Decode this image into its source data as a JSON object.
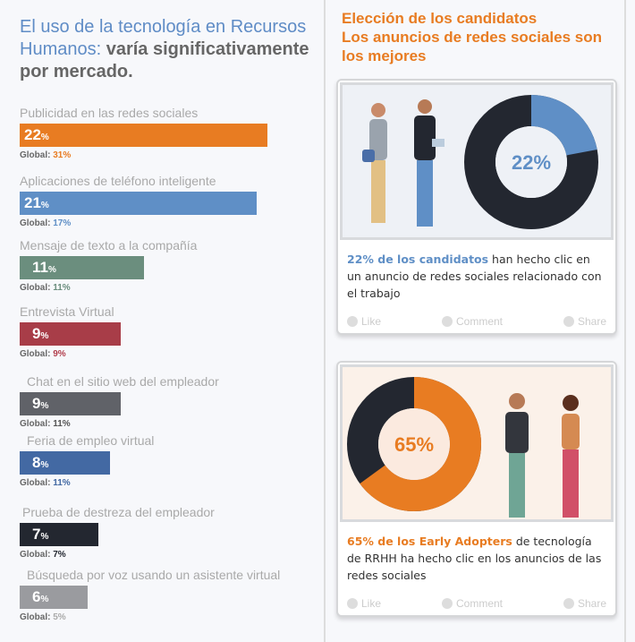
{
  "left": {
    "title_highlight": "El uso de la tecnología en Recursos Humanos:",
    "title_rest": " varía significativamente por mercado.",
    "global_label": "Global:",
    "items": [
      {
        "label": "Publicidad en las redes sociales",
        "value": 22,
        "value_text": "22",
        "global": "31%",
        "color": "#e87c22",
        "global_color": "#e87c22"
      },
      {
        "label": "Aplicaciones de teléfono inteligente",
        "value": 21,
        "value_text": "21",
        "global": "17%",
        "color": "#5f8fc6",
        "global_color": "#5f8fc6"
      },
      {
        "label": "Mensaje de texto a la compañía",
        "value": 11,
        "value_text": "11",
        "global": "11%",
        "color": "#6b8e7e",
        "global_color": "#6b8e7e"
      },
      {
        "label": "Entrevista Virtual",
        "value": 9,
        "value_text": "9",
        "global": "9%",
        "color": "#a83d48",
        "global_color": "#b13e4c"
      },
      {
        "label": "Chat en el sitio web del empleador",
        "value": 9,
        "value_text": "9",
        "global": "11%",
        "color": "#606268",
        "global_color": "#555"
      },
      {
        "label": "Feria de empleo virtual",
        "value": 8,
        "value_text": "8",
        "global": "11%",
        "color": "#4369a3",
        "global_color": "#4369a3"
      },
      {
        "label": "Prueba de destreza del empleador",
        "value": 7,
        "value_text": "7",
        "global": "7%",
        "color": "#232730",
        "global_color": "#232730"
      },
      {
        "label": "Búsqueda por voz usando un asistente virtual",
        "value": 6,
        "value_text": "6",
        "global": "5%",
        "color": "#9a9b9f",
        "global_color": "#aaa"
      }
    ],
    "percent_sign": "%"
  },
  "right": {
    "title_lines": [
      "Elección de los candidatos",
      "Los anuncios de redes sociales son",
      "los mejores"
    ],
    "cards": [
      {
        "donut_label": "22%",
        "donut_value": 22,
        "highlight": "22% de los candidatos",
        "text": " han hecho clic en un anuncio de redes sociales relacionado con el trabajo",
        "like": "Like",
        "comment": "Comment",
        "share": "Share"
      },
      {
        "donut_label": "65%",
        "donut_value": 65,
        "highlight": "65% de los Early Adopters",
        "text": " de tecnología de RRHH ha hecho clic en los anuncios de las redes sociales",
        "like": "Like",
        "comment": "Comment",
        "share": "Share"
      }
    ]
  }
}
